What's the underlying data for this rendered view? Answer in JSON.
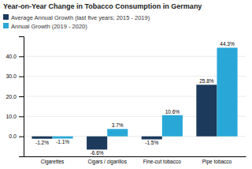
{
  "chart_data": {
    "type": "bar",
    "title": "Year-on-Year Change in Tobacco Consumption in Germany",
    "categories": [
      "Cigarettes",
      "Cigars / cigarillos",
      "Fine-cut tobacco",
      "Pipe tobacco"
    ],
    "series": [
      {
        "name": "Average Annual Growth (last five years; 2015 - 2019)",
        "color": "#1b3a5c",
        "values": [
          -1.2,
          -6.6,
          -1.5,
          25.8
        ],
        "value_labels": [
          "-1.2%",
          "-6.6%",
          "-1.5%",
          "25.8%"
        ]
      },
      {
        "name": "Annual Growth (2019 - 2020)",
        "color": "#29a8d8",
        "values": [
          -1.1,
          3.7,
          10.6,
          44.3
        ],
        "value_labels": [
          "-1.1%",
          "3.7%",
          "10.6%",
          "44.3%"
        ]
      }
    ],
    "ylim": [
      -10,
      50
    ],
    "yticks": [
      {
        "value": 0.0,
        "label": "0.0"
      },
      {
        "value": 10.0,
        "label": "10.0"
      },
      {
        "value": 20.0,
        "label": "20.0"
      },
      {
        "value": 30.0,
        "label": "30.0"
      },
      {
        "value": 40.0,
        "label": "40.0"
      }
    ],
    "grid": true,
    "legend": "top-left",
    "data_labels": true
  }
}
